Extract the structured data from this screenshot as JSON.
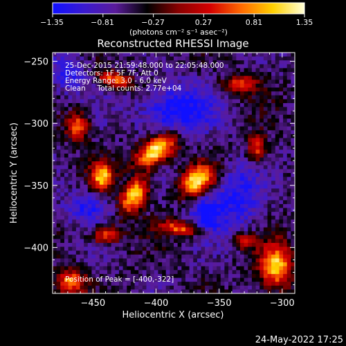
{
  "colorbar": {
    "ticks": [
      "−1.35",
      "−0.81",
      "−0.27",
      "0.27",
      "0.81",
      "1.35"
    ],
    "range": [
      -1.35,
      1.35
    ],
    "unit_label": "(photons cm⁻² s⁻¹ asec⁻²)",
    "colors": [
      "#1010ff",
      "#3a1ad0",
      "#5a1b9a",
      "#000000",
      "#8a0000",
      "#d40000",
      "#ff6a00",
      "#ffd000",
      "#ffffd8"
    ]
  },
  "chart_data": {
    "type": "heatmap",
    "title": "Reconstructed RHESSI Image",
    "xlabel": "Heliocentric X (arcsec)",
    "ylabel": "Heliocentric Y (arcsec)",
    "xlim": [
      -482,
      -290
    ],
    "ylim": [
      -437,
      -243
    ],
    "xticks": [
      -450,
      -400,
      -350,
      -300
    ],
    "yticks": [
      -250,
      -300,
      -350,
      -400
    ],
    "xtick_labels": [
      "−450",
      "−400",
      "−350",
      "−300"
    ],
    "ytick_labels": [
      "−250",
      "−300",
      "−350",
      "−400"
    ],
    "info_lines": [
      "25-Dec-2015 21:59:48.000 to 22:05:48.000",
      "Detectors: 1F 5F 7F, Att 0",
      "Energy Range: 3.0 - 6.0 keV",
      "Clean     Total counts: 2.77e+04"
    ],
    "peak_label": "Position of Peak = [-400,-322]",
    "peak": [
      -400,
      -322
    ],
    "sources": [
      {
        "x": -400,
        "y": -322,
        "sx": 13,
        "sy": 7,
        "angle": 35,
        "peak": 1.35
      },
      {
        "x": -367,
        "y": -346,
        "sx": 10,
        "sy": 7,
        "angle": 40,
        "peak": 1.25
      },
      {
        "x": -417,
        "y": -358,
        "sx": 6,
        "sy": 11,
        "angle": -30,
        "peak": 1.15
      },
      {
        "x": -443,
        "y": -343,
        "sx": 6,
        "sy": 8,
        "angle": 0,
        "peak": 0.95
      },
      {
        "x": -462,
        "y": -303,
        "sx": 6,
        "sy": 8,
        "angle": 0,
        "peak": 0.7
      },
      {
        "x": -440,
        "y": -390,
        "sx": 8,
        "sy": 5,
        "angle": 0,
        "peak": 0.6
      },
      {
        "x": -432,
        "y": -265,
        "sx": 10,
        "sy": 4,
        "angle": -15,
        "peak": 0.7
      },
      {
        "x": -380,
        "y": -385,
        "sx": 12,
        "sy": 4,
        "angle": -10,
        "peak": 0.6
      },
      {
        "x": -305,
        "y": -415,
        "sx": 9,
        "sy": 12,
        "angle": 0,
        "peak": 1.05
      },
      {
        "x": -468,
        "y": -428,
        "sx": 8,
        "sy": 7,
        "angle": 0,
        "peak": 0.75
      },
      {
        "x": -320,
        "y": -320,
        "sx": 5,
        "sy": 8,
        "angle": 0,
        "peak": 0.55
      },
      {
        "x": -333,
        "y": -268,
        "sx": 9,
        "sy": 5,
        "angle": 0,
        "peak": 0.5
      },
      {
        "x": -330,
        "y": -395,
        "sx": 6,
        "sy": 4,
        "angle": 0,
        "peak": 0.5
      }
    ],
    "negatives": [
      {
        "x": -385,
        "y": -290,
        "sx": 20,
        "sy": 14,
        "depth": 0.9
      },
      {
        "x": -360,
        "y": -372,
        "sx": 9,
        "sy": 12,
        "depth": 0.75
      },
      {
        "x": -455,
        "y": -367,
        "sx": 12,
        "sy": 9,
        "depth": 0.65
      },
      {
        "x": -335,
        "y": -360,
        "sx": 12,
        "sy": 18,
        "depth": 0.7
      },
      {
        "x": -470,
        "y": -260,
        "sx": 10,
        "sy": 12,
        "depth": 0.6
      }
    ]
  },
  "footer": {
    "date": "24-May-2022 17:25"
  }
}
